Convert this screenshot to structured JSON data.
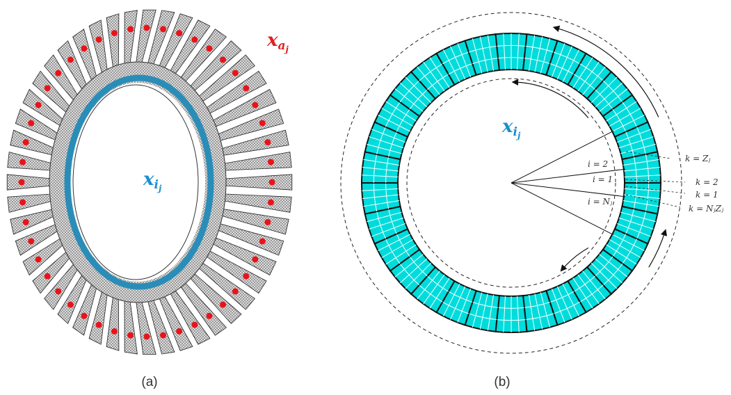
{
  "panel_a": {
    "caption": "(a)",
    "blade_label": {
      "base": "x",
      "sub": "a",
      "subsub": "j"
    },
    "disk_label": {
      "base": "x",
      "sub": "i",
      "subsub": "j"
    }
  },
  "panel_b": {
    "caption": "(b)",
    "disk_label": {
      "base": "x",
      "sub": "i",
      "subsub": "j"
    },
    "sector_labels": [
      "i = 2",
      "i = 1",
      "i = Nⱼ"
    ],
    "node_labels": [
      "k = Zⱼ",
      "k = 2",
      "k = 1",
      "k = NⱼZⱼ"
    ]
  }
}
